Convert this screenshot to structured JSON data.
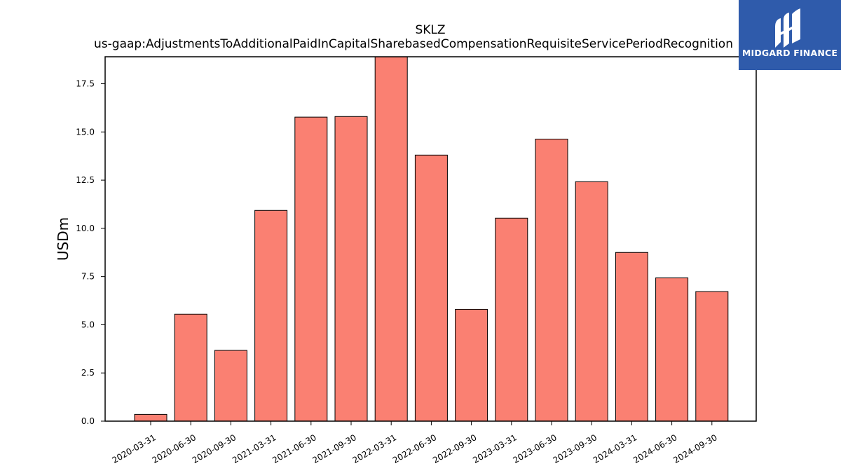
{
  "logo": {
    "text": "MIDGARD FINANCE",
    "background": "#2f5bab"
  },
  "chart_data": {
    "type": "bar",
    "title_line1": "SKLZ",
    "title_line2": "us-gaap:AdjustmentsToAdditionalPaidInCapitalSharebasedCompensationRequisiteServicePeriodRecognition",
    "xlabel": "",
    "ylabel": "USDm",
    "ylim": [
      0,
      18.9
    ],
    "yticks": [
      "0.0",
      "2.5",
      "5.0",
      "7.5",
      "10.0",
      "12.5",
      "15.0",
      "17.5"
    ],
    "categories": [
      "2020-03-31",
      "2020-06-30",
      "2020-09-30",
      "2021-03-31",
      "2021-06-30",
      "2021-09-30",
      "2022-03-31",
      "2022-06-30",
      "2022-09-30",
      "2023-03-31",
      "2023-06-30",
      "2023-09-30",
      "2024-03-31",
      "2024-06-30",
      "2024-09-30"
    ],
    "values": [
      0.35,
      5.55,
      3.67,
      10.93,
      15.77,
      15.8,
      19.0,
      13.8,
      5.8,
      10.53,
      14.63,
      12.42,
      8.75,
      7.43,
      6.72
    ],
    "bar_color": "#fa8072",
    "bar_edge_color": "#000000",
    "grid": false,
    "legend": "none"
  }
}
